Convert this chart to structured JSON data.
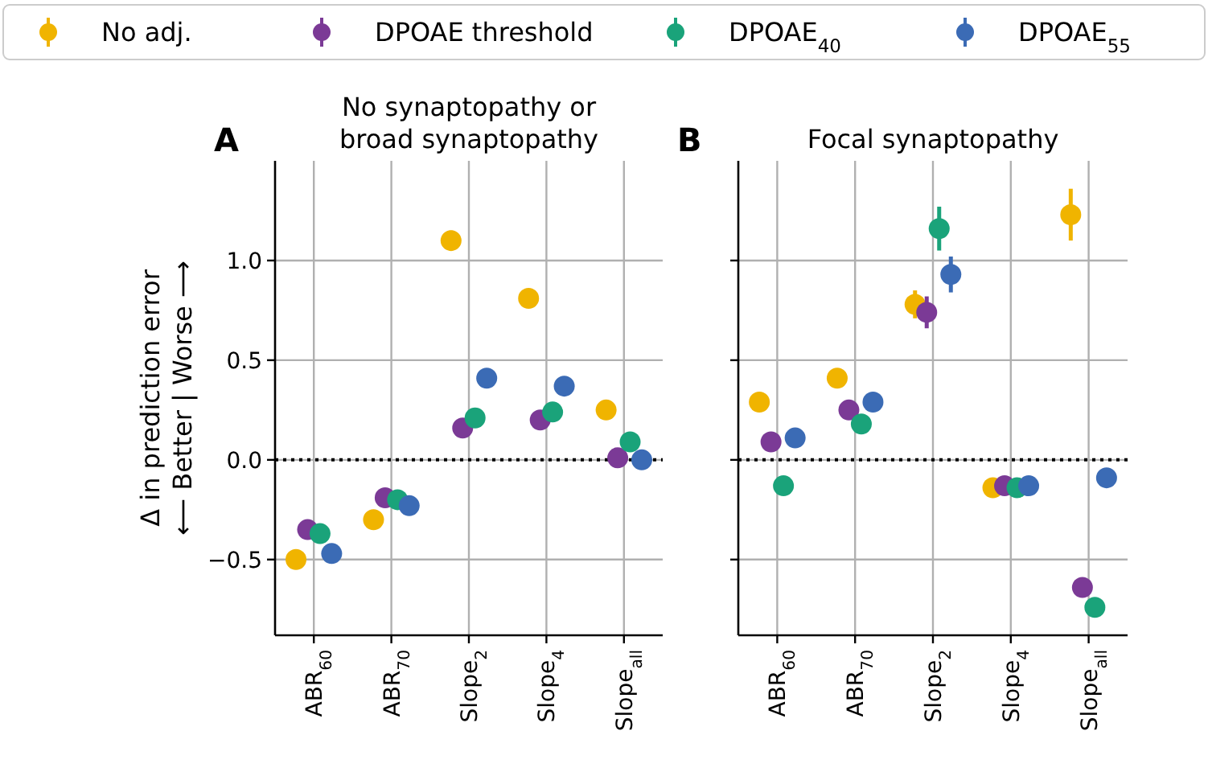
{
  "chart_data": [
    {
      "type": "scatter",
      "title": "No synaptopathy or\nbroad synaptopathy",
      "ylabel": "Δ in prediction error\n⟵ Better | Worse ⟶",
      "annotations": [
        "A"
      ],
      "categories": [
        "ABR$_{60}$",
        "ABR$_{70}$",
        "Slope$_{2}$",
        "Slope$_{4}$",
        "Slope$_{all}$"
      ],
      "ylim": [
        -0.88,
        1.5
      ],
      "yticks": [
        {
          "value": -0.5,
          "label": "−0.5"
        },
        {
          "value": 0,
          "label": "0.0"
        },
        {
          "value": 0.5,
          "label": "0.5"
        },
        {
          "value": 1,
          "label": "1.0"
        }
      ],
      "grid": true,
      "legend": "top",
      "marker": "circle",
      "ref_lines": [
        {
          "axis": "y",
          "value": 0,
          "color": "#000000",
          "line_style": "dotted"
        }
      ],
      "series": [
        {
          "name": "No adj.",
          "color": "#f0b400",
          "values": [
            -0.5,
            -0.3,
            1.1,
            0.81,
            0.25
          ],
          "errors": [
            0.04,
            0.02,
            0.05,
            0.02,
            0.03
          ]
        },
        {
          "name": "DPOAE threshold",
          "color": "#7b3a96",
          "values": [
            -0.35,
            -0.19,
            0.16,
            0.2,
            0.01
          ],
          "errors": [
            0.03,
            0.02,
            0.02,
            0.02,
            0.02
          ]
        },
        {
          "name": "DPOAE$_{40}$",
          "color": "#1aa37a",
          "values": [
            -0.37,
            -0.2,
            0.21,
            0.24,
            0.09
          ],
          "errors": [
            0.03,
            0.02,
            0.02,
            0.02,
            0.02
          ]
        },
        {
          "name": "DPOAE$_{55}$",
          "color": "#3b6bb5",
          "values": [
            -0.47,
            -0.23,
            0.41,
            0.37,
            0.0
          ],
          "errors": [
            0.05,
            0.02,
            0.04,
            0.02,
            0.02
          ]
        }
      ]
    },
    {
      "type": "scatter",
      "title": "Focal synaptopathy",
      "annotations": [
        "B"
      ],
      "categories": [
        "ABR$_{60}$",
        "ABR$_{70}$",
        "Slope$_{2}$",
        "Slope$_{4}$",
        "Slope$_{all}$"
      ],
      "ylim": [
        -0.88,
        1.5
      ],
      "yticks": [
        {
          "value": -0.5,
          "label": null
        },
        {
          "value": 0,
          "label": null
        },
        {
          "value": 0.5,
          "label": null
        },
        {
          "value": 1,
          "label": null
        }
      ],
      "tick_labels": "x",
      "grid": true,
      "marker": "circle",
      "ref_lines": [
        {
          "axis": "y",
          "value": 0,
          "color": "#000000",
          "line_style": "dotted"
        }
      ],
      "series": [
        {
          "color": "#f0b400",
          "values": [
            0.29,
            0.41,
            0.78,
            -0.14,
            1.23
          ],
          "errors": [
            0.02,
            0.02,
            0.07,
            0.02,
            0.13
          ]
        },
        {
          "color": "#7b3a96",
          "values": [
            0.09,
            0.25,
            0.74,
            -0.13,
            -0.64
          ],
          "errors": [
            0.02,
            0.02,
            0.08,
            0.02,
            0.02
          ]
        },
        {
          "color": "#1aa37a",
          "values": [
            -0.13,
            0.18,
            1.16,
            -0.14,
            -0.74
          ],
          "errors": [
            0.04,
            0.02,
            0.11,
            0.02,
            0.02
          ]
        },
        {
          "color": "#3b6bb5",
          "values": [
            0.11,
            0.29,
            0.93,
            -0.13,
            -0.09
          ],
          "errors": [
            0.02,
            0.02,
            0.09,
            0.02,
            0.02
          ]
        }
      ]
    }
  ]
}
